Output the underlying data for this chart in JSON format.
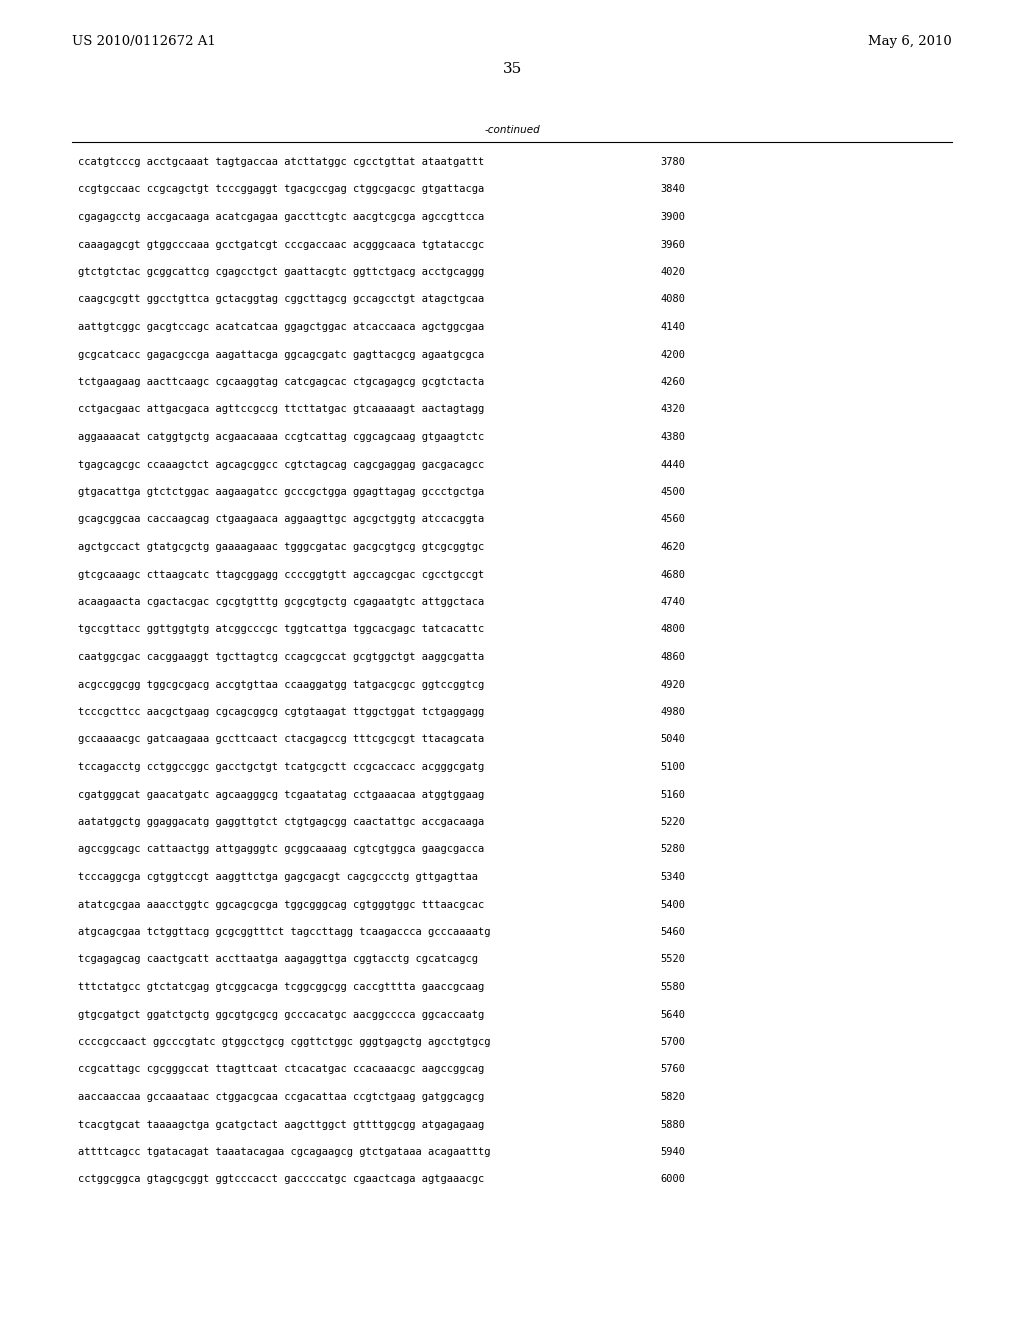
{
  "header_left": "US 2010/0112672 A1",
  "header_right": "May 6, 2010",
  "page_number": "35",
  "continued_label": "-continued",
  "background_color": "#ffffff",
  "text_color": "#000000",
  "font_size_header": 9.5,
  "font_size_body": 7.5,
  "font_size_page": 11,
  "sequence_lines": [
    [
      "ccatgtcccg acctgcaaat tagtgaccaa atcttatggc cgcctgttat ataatgattt",
      "3780"
    ],
    [
      "ccgtgccaac ccgcagctgt tcccggaggt tgacgccgag ctggcgacgc gtgattacga",
      "3840"
    ],
    [
      "cgagagcctg accgacaaga acatcgagaa gaccttcgtc aacgtcgcga agccgttcca",
      "3900"
    ],
    [
      "caaagagcgt gtggcccaaa gcctgatcgt cccgaccaac acgggcaaca tgtataccgc",
      "3960"
    ],
    [
      "gtctgtctac gcggcattcg cgagcctgct gaattacgtc ggttctgacg acctgcaggg",
      "4020"
    ],
    [
      "caagcgcgtt ggcctgttca gctacggtag cggcttagcg gccagcctgt atagctgcaa",
      "4080"
    ],
    [
      "aattgtcggc gacgtccagc acatcatcaa ggagctggac atcaccaaca agctggcgaa",
      "4140"
    ],
    [
      "gcgcatcacc gagacgccga aagattacga ggcagcgatc gagttacgcg agaatgcgca",
      "4200"
    ],
    [
      "tctgaagaag aacttcaagc cgcaaggtag catcgagcac ctgcagagcg gcgtctacta",
      "4260"
    ],
    [
      "cctgacgaac attgacgaca agttccgccg ttcttatgac gtcaaaaagt aactagtagg",
      "4320"
    ],
    [
      "aggaaaacat catggtgctg acgaacaaaa ccgtcattag cggcagcaag gtgaagtctc",
      "4380"
    ],
    [
      "tgagcagcgc ccaaagctct agcagcggcc cgtctagcag cagcgaggag gacgacagcc",
      "4440"
    ],
    [
      "gtgacattga gtctctggac aagaagatcc gcccgctgga ggagttagag gccctgctga",
      "4500"
    ],
    [
      "gcagcggcaa caccaagcag ctgaagaaca aggaagttgc agcgctggtg atccacggta",
      "4560"
    ],
    [
      "agctgccact gtatgcgctg gaaaagaaac tgggcgatac gacgcgtgcg gtcgcggtgc",
      "4620"
    ],
    [
      "gtcgcaaagc cttaagcatc ttagcggagg ccccggtgtt agccagcgac cgcctgccgt",
      "4680"
    ],
    [
      "acaagaacta cgactacgac cgcgtgtttg gcgcgtgctg cgagaatgtc attggctaca",
      "4740"
    ],
    [
      "tgccgttacc ggttggtgtg atcggcccgc tggtcattga tggcacgagc tatcacattc",
      "4800"
    ],
    [
      "caatggcgac cacggaaggt tgcttagtcg ccagcgccat gcgtggctgt aaggcgatta",
      "4860"
    ],
    [
      "acgccggcgg tggcgcgacg accgtgttaa ccaaggatgg tatgacgcgc ggtccggtcg",
      "4920"
    ],
    [
      "tcccgcttcc aacgctgaag cgcagcggcg cgtgtaagat ttggctggat tctgaggagg",
      "4980"
    ],
    [
      "gccaaaacgc gatcaagaaa gccttcaact ctacgagccg tttcgcgcgt ttacagcata",
      "5040"
    ],
    [
      "tccagacctg cctggccggc gacctgctgt tcatgcgctt ccgcaccacc acgggcgatg",
      "5100"
    ],
    [
      "cgatgggcat gaacatgatc agcaagggcg tcgaatatag cctgaaacaa atggtggaag",
      "5160"
    ],
    [
      "aatatggctg ggaggacatg gaggttgtct ctgtgagcgg caactattgc accgacaaga",
      "5220"
    ],
    [
      "agccggcagc cattaactgg attgagggtc gcggcaaaag cgtcgtggca gaagcgacca",
      "5280"
    ],
    [
      "tcccaggcga cgtggtccgt aaggttctga gagcgacgt cagcgccctg gttgagttaa",
      "5340"
    ],
    [
      "atatcgcgaa aaacctggtc ggcagcgcga tggcgggcag cgtgggtggc tttaacgcac",
      "5400"
    ],
    [
      "atgcagcgaa tctggttacg gcgcggtttct tagccttagg tcaagaccca gcccaaaatg",
      "5460"
    ],
    [
      "tcgagagcag caactgcatt accttaatga aagaggttga cggtacctg cgcatcagcg",
      "5520"
    ],
    [
      "tttctatgcc gtctatcgag gtcggcacga tcggcggcgg caccgtttta gaaccgcaag",
      "5580"
    ],
    [
      "gtgcgatgct ggatctgctg ggcgtgcgcg gcccacatgc aacggcccca ggcaccaatg",
      "5640"
    ],
    [
      "ccccgccaact ggcccgtatc gtggcctgcg cggttctggc gggtgagctg agcctgtgcg",
      "5700"
    ],
    [
      "ccgcattagc cgcgggccat ttagttcaat ctcacatgac ccacaaacgc aagccggcag",
      "5760"
    ],
    [
      "aaccaaccaa gccaaataac ctggacgcaa ccgacattaa ccgtctgaag gatggcagcg",
      "5820"
    ],
    [
      "tcacgtgcat taaaagctga gcatgctact aagcttggct gttttggcgg atgagagaag",
      "5880"
    ],
    [
      "attttcagcc tgatacagat taaatacagaa cgcagaagcg gtctgataaa acagaatttg",
      "5940"
    ],
    [
      "cctggcggca gtagcgcggt ggtcccacct gaccccatgc cgaactcaga agtgaaacgc",
      "6000"
    ]
  ]
}
